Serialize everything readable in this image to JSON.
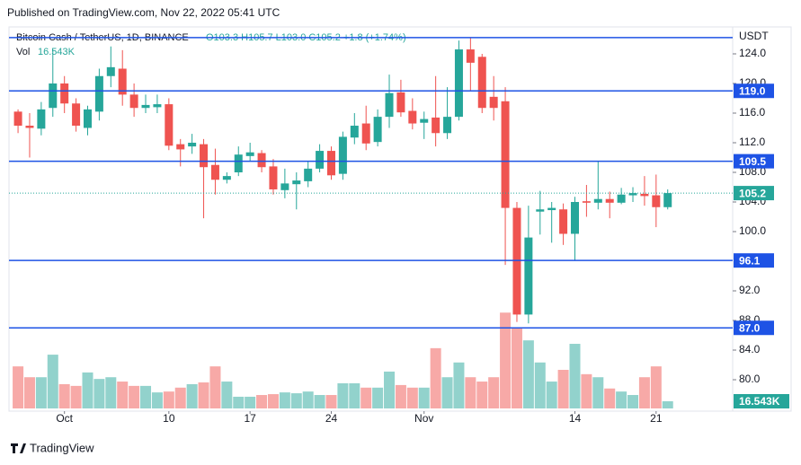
{
  "chart_data": {
    "type": "candlestick",
    "published": "Published on TradingView.com, Nov 22, 2022 05:41 UTC",
    "symbol": "Bitcoin Cash / TetherUS, 1D, BINANCE",
    "ohlc_text": "O103.3 H105.7 L103.0 C105.2 +1.8 (+1.74%)",
    "volume_title": "Vol",
    "volume_label": "16.543K",
    "currency": "USDT",
    "brand": "TradingView",
    "up_color": "#26a69a",
    "down_color": "#ef5350",
    "level_color": "#1e53e5",
    "candles": {
      "open": [
        116.2,
        114.3,
        113.9,
        116.7,
        120,
        117.3,
        114,
        116.2,
        121,
        122,
        118.5,
        116.7,
        116.8,
        117.2,
        111.8,
        111.5,
        111.8,
        109,
        107,
        108,
        110.2,
        110.6,
        108.8,
        105.6,
        106.4,
        106.8,
        108.5,
        110.9,
        107.8,
        112.7,
        114.6,
        112.1,
        115.5,
        118.8,
        116.3,
        114.7,
        115.4,
        113.3,
        115.5,
        124.6,
        123.6,
        118.2,
        117.6,
        103.2,
        88.8,
        102.7,
        102.9,
        103,
        99.7,
        104.1,
        103.9,
        104.4,
        103.9,
        104.9,
        105.1,
        104.9,
        103.3
      ],
      "high": [
        116.5,
        116,
        117.5,
        124.6,
        121,
        118,
        117,
        122,
        125,
        124.5,
        120,
        118.5,
        118.5,
        118,
        112.5,
        113.2,
        112.5,
        111.2,
        108,
        111.5,
        112,
        111,
        109.8,
        108.5,
        108,
        109.5,
        111.8,
        111.5,
        113.5,
        116,
        117,
        116.5,
        121.2,
        120.5,
        118,
        116.2,
        121,
        119.5,
        125.8,
        126.2,
        124,
        121,
        119.5,
        104,
        103.5,
        105.5,
        104,
        103.8,
        104.7,
        106.3,
        109.5,
        105.4,
        105.9,
        106,
        107.5,
        107.7,
        105.7
      ],
      "low": [
        113.3,
        110,
        113,
        115.5,
        116,
        113.5,
        113,
        115,
        119.5,
        117,
        115.5,
        116,
        116,
        111,
        108.8,
        110.5,
        101.8,
        105,
        106.5,
        107.5,
        109.5,
        108,
        105,
        104.5,
        103,
        106,
        108,
        107,
        107,
        111.8,
        111,
        111.5,
        114,
        115.5,
        113.8,
        112.5,
        111.5,
        112.5,
        115,
        119,
        116,
        115,
        95.5,
        87.8,
        87.6,
        99.6,
        98.5,
        98.2,
        96.1,
        102,
        103,
        101.8,
        103.7,
        104,
        103.5,
        100.6,
        103.0
      ],
      "close": [
        114.3,
        114.0,
        116.5,
        120,
        117.3,
        114.3,
        116.5,
        121,
        122.2,
        118.5,
        116.7,
        117.1,
        117.2,
        111.6,
        111.1,
        112,
        108.7,
        107,
        107.5,
        110.4,
        110.7,
        108.7,
        105.7,
        106.5,
        106.9,
        108.5,
        110.9,
        107.6,
        112.8,
        114.3,
        111.9,
        115.5,
        118.7,
        116.1,
        114.6,
        115.2,
        113.3,
        115.5,
        124.6,
        122.8,
        116.7,
        116.7,
        103.2,
        88.8,
        99.2,
        103.0,
        103.2,
        99.7,
        104,
        103.9,
        104.4,
        103.9,
        105,
        105.2,
        104.8,
        103.3,
        105.2
      ],
      "volume": [
        97,
        72,
        72,
        124,
        56,
        52,
        83,
        68,
        72,
        62,
        52,
        52,
        37,
        39,
        48,
        56,
        60,
        97,
        62,
        27,
        27,
        31,
        33,
        37,
        35,
        39,
        31,
        31,
        58,
        58,
        48,
        48,
        85,
        54,
        48,
        48,
        139,
        72,
        106,
        72,
        62,
        72,
        221,
        186,
        157,
        106,
        62,
        89,
        149,
        79,
        72,
        46,
        39,
        31,
        72,
        97,
        16.543
      ]
    },
    "xlim": [
      -0.78,
      61.6
    ],
    "ylim": [
      76.12,
      127.03
    ],
    "vlim": [
      0,
      221.5
    ],
    "yticks": [
      {
        "value": 124,
        "label": "124.0"
      },
      {
        "value": 120,
        "label": "120.0"
      },
      {
        "value": 116,
        "label": "116.0"
      },
      {
        "value": 112,
        "label": "112.0"
      },
      {
        "value": 108,
        "label": "108.0"
      },
      {
        "value": 104,
        "label": "104.0"
      },
      {
        "value": 100,
        "label": "100.0"
      },
      {
        "value": 92,
        "label": "92.0"
      },
      {
        "value": 88,
        "label": "88.0"
      },
      {
        "value": 84,
        "label": "84.0"
      },
      {
        "value": 80,
        "label": "80.0"
      }
    ],
    "xticks": [
      {
        "value": 4,
        "label": "Oct"
      },
      {
        "value": 13,
        "label": "10"
      },
      {
        "value": 20,
        "label": "17"
      },
      {
        "value": 27,
        "label": "24"
      },
      {
        "value": 35,
        "label": "Nov"
      },
      {
        "value": 48,
        "label": "14"
      },
      {
        "value": 55,
        "label": "21"
      }
    ],
    "guide_line": 126.2,
    "levels": [
      {
        "value": 119,
        "label": "119.0"
      },
      109.5,
      96.1,
      {
        "value": 87,
        "label": "87.0"
      }
    ]
  }
}
